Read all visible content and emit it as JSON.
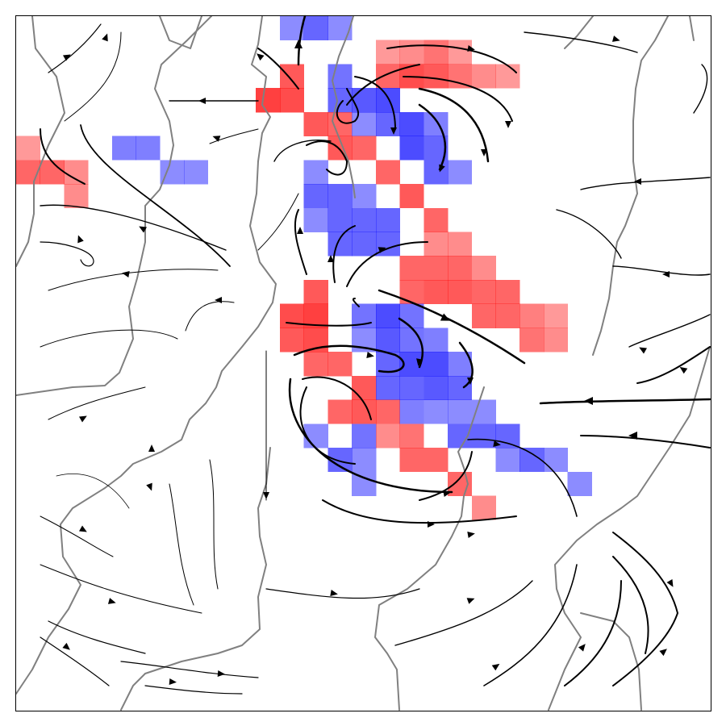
{
  "chart_data": {
    "type": "heatmap",
    "title": "",
    "xlabel": "",
    "ylabel": "",
    "xlim": [
      0,
      29
    ],
    "ylim": [
      0,
      29
    ],
    "grid": false,
    "legend": null,
    "colors": {
      "positive": "#ff0000",
      "negative": "#0000ff",
      "contour": "#808080",
      "streamline": "#000000",
      "frame": "#000000"
    },
    "grid_cells": [
      {
        "col": 11,
        "row": 0,
        "value": -0.45
      },
      {
        "col": 12,
        "row": 0,
        "value": -0.6
      },
      {
        "col": 13,
        "row": 0,
        "value": -0.45
      },
      {
        "col": 15,
        "row": 1,
        "value": 0.4
      },
      {
        "col": 16,
        "row": 1,
        "value": 0.45
      },
      {
        "col": 17,
        "row": 1,
        "value": 0.55
      },
      {
        "col": 18,
        "row": 1,
        "value": 0.4
      },
      {
        "col": 11,
        "row": 2,
        "value": 0.65
      },
      {
        "col": 13,
        "row": 2,
        "value": -0.55
      },
      {
        "col": 15,
        "row": 2,
        "value": 0.6
      },
      {
        "col": 16,
        "row": 2,
        "value": 0.7
      },
      {
        "col": 17,
        "row": 2,
        "value": 0.65
      },
      {
        "col": 18,
        "row": 2,
        "value": 0.55
      },
      {
        "col": 19,
        "row": 2,
        "value": 0.45
      },
      {
        "col": 20,
        "row": 2,
        "value": 0.4
      },
      {
        "col": 10,
        "row": 3,
        "value": 0.75
      },
      {
        "col": 11,
        "row": 3,
        "value": 0.7
      },
      {
        "col": 13,
        "row": 3,
        "value": -0.6
      },
      {
        "col": 14,
        "row": 3,
        "value": -0.65
      },
      {
        "col": 15,
        "row": 3,
        "value": -0.7
      },
      {
        "col": 12,
        "row": 4,
        "value": 0.65
      },
      {
        "col": 13,
        "row": 4,
        "value": 0.6
      },
      {
        "col": 14,
        "row": 4,
        "value": -0.45
      },
      {
        "col": 15,
        "row": 4,
        "value": -0.6
      },
      {
        "col": 16,
        "row": 4,
        "value": -0.7
      },
      {
        "col": 17,
        "row": 4,
        "value": -0.5
      },
      {
        "col": 0,
        "row": 5,
        "value": 0.4
      },
      {
        "col": 4,
        "row": 5,
        "value": -0.5
      },
      {
        "col": 5,
        "row": 5,
        "value": -0.5
      },
      {
        "col": 13,
        "row": 5,
        "value": 0.65
      },
      {
        "col": 14,
        "row": 5,
        "value": 0.6
      },
      {
        "col": 16,
        "row": 5,
        "value": -0.7
      },
      {
        "col": 17,
        "row": 5,
        "value": -0.6
      },
      {
        "col": 0,
        "row": 6,
        "value": 0.6
      },
      {
        "col": 1,
        "row": 6,
        "value": 0.6
      },
      {
        "col": 2,
        "row": 6,
        "value": 0.45
      },
      {
        "col": 6,
        "row": 6,
        "value": -0.45
      },
      {
        "col": 7,
        "row": 6,
        "value": -0.45
      },
      {
        "col": 12,
        "row": 6,
        "value": -0.45
      },
      {
        "col": 15,
        "row": 6,
        "value": 0.6
      },
      {
        "col": 17,
        "row": 6,
        "value": -0.6
      },
      {
        "col": 18,
        "row": 6,
        "value": -0.45
      },
      {
        "col": 2,
        "row": 7,
        "value": 0.45
      },
      {
        "col": 12,
        "row": 7,
        "value": -0.6
      },
      {
        "col": 13,
        "row": 7,
        "value": -0.6
      },
      {
        "col": 14,
        "row": 7,
        "value": -0.45
      },
      {
        "col": 16,
        "row": 7,
        "value": 0.65
      },
      {
        "col": 12,
        "row": 8,
        "value": -0.45
      },
      {
        "col": 13,
        "row": 8,
        "value": -0.6
      },
      {
        "col": 14,
        "row": 8,
        "value": -0.6
      },
      {
        "col": 15,
        "row": 8,
        "value": -0.6
      },
      {
        "col": 17,
        "row": 8,
        "value": 0.6
      },
      {
        "col": 13,
        "row": 9,
        "value": -0.6
      },
      {
        "col": 14,
        "row": 9,
        "value": -0.6
      },
      {
        "col": 15,
        "row": 9,
        "value": -0.6
      },
      {
        "col": 17,
        "row": 9,
        "value": 0.45
      },
      {
        "col": 18,
        "row": 9,
        "value": 0.45
      },
      {
        "col": 16,
        "row": 10,
        "value": 0.6
      },
      {
        "col": 17,
        "row": 10,
        "value": 0.6
      },
      {
        "col": 18,
        "row": 10,
        "value": 0.6
      },
      {
        "col": 19,
        "row": 10,
        "value": 0.45
      },
      {
        "col": 12,
        "row": 11,
        "value": 0.65
      },
      {
        "col": 16,
        "row": 11,
        "value": 0.6
      },
      {
        "col": 17,
        "row": 11,
        "value": 0.65
      },
      {
        "col": 18,
        "row": 11,
        "value": 0.65
      },
      {
        "col": 19,
        "row": 11,
        "value": 0.6
      },
      {
        "col": 20,
        "row": 11,
        "value": 0.6
      },
      {
        "col": 11,
        "row": 12,
        "value": 0.7
      },
      {
        "col": 12,
        "row": 12,
        "value": 0.75
      },
      {
        "col": 14,
        "row": 12,
        "value": -0.55
      },
      {
        "col": 15,
        "row": 12,
        "value": -0.7
      },
      {
        "col": 16,
        "row": 12,
        "value": -0.55
      },
      {
        "col": 19,
        "row": 12,
        "value": 0.6
      },
      {
        "col": 20,
        "row": 12,
        "value": 0.6
      },
      {
        "col": 21,
        "row": 12,
        "value": 0.5
      },
      {
        "col": 22,
        "row": 12,
        "value": 0.4
      },
      {
        "col": 11,
        "row": 13,
        "value": 0.65
      },
      {
        "col": 12,
        "row": 13,
        "value": 0.7
      },
      {
        "col": 14,
        "row": 13,
        "value": -0.45
      },
      {
        "col": 15,
        "row": 13,
        "value": -0.65
      },
      {
        "col": 16,
        "row": 13,
        "value": -0.55
      },
      {
        "col": 17,
        "row": 13,
        "value": -0.5
      },
      {
        "col": 21,
        "row": 13,
        "value": 0.55
      },
      {
        "col": 22,
        "row": 13,
        "value": 0.45
      },
      {
        "col": 12,
        "row": 14,
        "value": 0.6
      },
      {
        "col": 13,
        "row": 14,
        "value": 0.6
      },
      {
        "col": 15,
        "row": 14,
        "value": -0.6
      },
      {
        "col": 16,
        "row": 14,
        "value": -0.7
      },
      {
        "col": 17,
        "row": 14,
        "value": -0.7
      },
      {
        "col": 18,
        "row": 14,
        "value": -0.5
      },
      {
        "col": 14,
        "row": 15,
        "value": 0.65
      },
      {
        "col": 15,
        "row": 15,
        "value": -0.6
      },
      {
        "col": 16,
        "row": 15,
        "value": -0.6
      },
      {
        "col": 17,
        "row": 15,
        "value": -0.65
      },
      {
        "col": 18,
        "row": 15,
        "value": -0.6
      },
      {
        "col": 13,
        "row": 16,
        "value": 0.6
      },
      {
        "col": 14,
        "row": 16,
        "value": 0.65
      },
      {
        "col": 15,
        "row": 16,
        "value": 0.6
      },
      {
        "col": 16,
        "row": 16,
        "value": -0.5
      },
      {
        "col": 17,
        "row": 16,
        "value": -0.45
      },
      {
        "col": 18,
        "row": 16,
        "value": -0.45
      },
      {
        "col": 19,
        "row": 16,
        "value": -0.45
      },
      {
        "col": 12,
        "row": 17,
        "value": -0.45
      },
      {
        "col": 14,
        "row": 17,
        "value": -0.55
      },
      {
        "col": 15,
        "row": 17,
        "value": 0.45
      },
      {
        "col": 16,
        "row": 17,
        "value": 0.55
      },
      {
        "col": 18,
        "row": 17,
        "value": -0.6
      },
      {
        "col": 19,
        "row": 17,
        "value": -0.6
      },
      {
        "col": 20,
        "row": 17,
        "value": -0.6
      },
      {
        "col": 13,
        "row": 18,
        "value": -0.6
      },
      {
        "col": 14,
        "row": 18,
        "value": -0.45
      },
      {
        "col": 16,
        "row": 18,
        "value": 0.6
      },
      {
        "col": 17,
        "row": 18,
        "value": 0.6
      },
      {
        "col": 20,
        "row": 18,
        "value": -0.45
      },
      {
        "col": 21,
        "row": 18,
        "value": -0.6
      },
      {
        "col": 22,
        "row": 18,
        "value": -0.45
      },
      {
        "col": 14,
        "row": 19,
        "value": -0.45
      },
      {
        "col": 18,
        "row": 19,
        "value": 0.6
      },
      {
        "col": 23,
        "row": 19,
        "value": -0.45
      },
      {
        "col": 19,
        "row": 20,
        "value": 0.45
      }
    ]
  }
}
